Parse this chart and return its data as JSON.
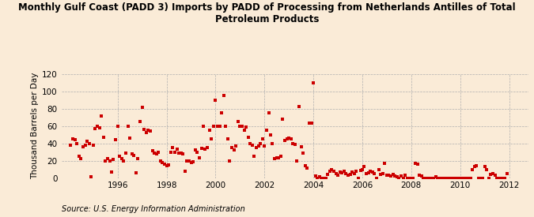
{
  "title": "Monthly Gulf Coast (PADD 3) Imports by PADD of Processing from Netherlands Antilles of Total\nPetroleum Products",
  "ylabel": "Thousand Barrels per Day",
  "source": "Source: U.S. Energy Information Administration",
  "background_color": "#faebd7",
  "marker_color": "#cc0000",
  "ylim": [
    0,
    120
  ],
  "yticks": [
    0,
    20,
    40,
    60,
    80,
    100,
    120
  ],
  "xlim_start": 1993.7,
  "xlim_end": 2012.8,
  "xtick_years": [
    1996,
    1998,
    2000,
    2002,
    2004,
    2006,
    2008,
    2010,
    2012
  ],
  "data": [
    [
      1994.08,
      38
    ],
    [
      1994.17,
      45
    ],
    [
      1994.25,
      44
    ],
    [
      1994.33,
      40
    ],
    [
      1994.42,
      25
    ],
    [
      1994.5,
      22
    ],
    [
      1994.58,
      36
    ],
    [
      1994.67,
      38
    ],
    [
      1994.75,
      42
    ],
    [
      1994.83,
      40
    ],
    [
      1994.92,
      1
    ],
    [
      1995.0,
      38
    ],
    [
      1995.08,
      57
    ],
    [
      1995.17,
      60
    ],
    [
      1995.25,
      58
    ],
    [
      1995.33,
      71
    ],
    [
      1995.42,
      47
    ],
    [
      1995.5,
      20
    ],
    [
      1995.58,
      22
    ],
    [
      1995.67,
      20
    ],
    [
      1995.75,
      7
    ],
    [
      1995.83,
      21
    ],
    [
      1995.92,
      44
    ],
    [
      1996.0,
      60
    ],
    [
      1996.08,
      25
    ],
    [
      1996.17,
      22
    ],
    [
      1996.25,
      20
    ],
    [
      1996.33,
      29
    ],
    [
      1996.42,
      60
    ],
    [
      1996.5,
      46
    ],
    [
      1996.58,
      28
    ],
    [
      1996.67,
      26
    ],
    [
      1996.75,
      6
    ],
    [
      1996.83,
      22
    ],
    [
      1996.92,
      65
    ],
    [
      1997.0,
      81
    ],
    [
      1997.08,
      56
    ],
    [
      1997.17,
      52
    ],
    [
      1997.25,
      55
    ],
    [
      1997.33,
      54
    ],
    [
      1997.42,
      31
    ],
    [
      1997.5,
      29
    ],
    [
      1997.58,
      28
    ],
    [
      1997.67,
      30
    ],
    [
      1997.75,
      20
    ],
    [
      1997.83,
      18
    ],
    [
      1997.92,
      16
    ],
    [
      1998.0,
      14
    ],
    [
      1998.08,
      15
    ],
    [
      1998.17,
      30
    ],
    [
      1998.25,
      35
    ],
    [
      1998.33,
      30
    ],
    [
      1998.42,
      33
    ],
    [
      1998.5,
      29
    ],
    [
      1998.58,
      29
    ],
    [
      1998.67,
      28
    ],
    [
      1998.75,
      8
    ],
    [
      1998.83,
      20
    ],
    [
      1998.92,
      20
    ],
    [
      1999.0,
      18
    ],
    [
      1999.08,
      19
    ],
    [
      1999.17,
      32
    ],
    [
      1999.25,
      30
    ],
    [
      1999.33,
      23
    ],
    [
      1999.42,
      34
    ],
    [
      1999.5,
      60
    ],
    [
      1999.58,
      33
    ],
    [
      1999.67,
      35
    ],
    [
      1999.75,
      55
    ],
    [
      1999.83,
      45
    ],
    [
      1999.92,
      60
    ],
    [
      2000.0,
      90
    ],
    [
      2000.08,
      60
    ],
    [
      2000.17,
      60
    ],
    [
      2000.25,
      75
    ],
    [
      2000.33,
      95
    ],
    [
      2000.42,
      60
    ],
    [
      2000.5,
      45
    ],
    [
      2000.58,
      20
    ],
    [
      2000.67,
      35
    ],
    [
      2000.75,
      32
    ],
    [
      2000.83,
      37
    ],
    [
      2000.92,
      65
    ],
    [
      2001.0,
      60
    ],
    [
      2001.08,
      60
    ],
    [
      2001.17,
      55
    ],
    [
      2001.25,
      59
    ],
    [
      2001.33,
      47
    ],
    [
      2001.42,
      40
    ],
    [
      2001.5,
      38
    ],
    [
      2001.58,
      25
    ],
    [
      2001.67,
      35
    ],
    [
      2001.75,
      37
    ],
    [
      2001.83,
      40
    ],
    [
      2001.92,
      45
    ],
    [
      2002.0,
      37
    ],
    [
      2002.08,
      55
    ],
    [
      2002.17,
      75
    ],
    [
      2002.25,
      50
    ],
    [
      2002.33,
      40
    ],
    [
      2002.42,
      22
    ],
    [
      2002.5,
      23
    ],
    [
      2002.58,
      23
    ],
    [
      2002.67,
      25
    ],
    [
      2002.75,
      68
    ],
    [
      2002.83,
      43
    ],
    [
      2002.92,
      45
    ],
    [
      2003.0,
      46
    ],
    [
      2003.08,
      45
    ],
    [
      2003.17,
      40
    ],
    [
      2003.25,
      39
    ],
    [
      2003.33,
      20
    ],
    [
      2003.42,
      82
    ],
    [
      2003.5,
      36
    ],
    [
      2003.58,
      29
    ],
    [
      2003.67,
      14
    ],
    [
      2003.75,
      11
    ],
    [
      2003.83,
      63
    ],
    [
      2003.92,
      63
    ],
    [
      2004.0,
      110
    ],
    [
      2004.08,
      2
    ],
    [
      2004.17,
      0
    ],
    [
      2004.25,
      1
    ],
    [
      2004.33,
      0
    ],
    [
      2004.42,
      0
    ],
    [
      2004.5,
      0
    ],
    [
      2004.58,
      4
    ],
    [
      2004.67,
      8
    ],
    [
      2004.75,
      10
    ],
    [
      2004.83,
      8
    ],
    [
      2004.92,
      5
    ],
    [
      2005.0,
      3
    ],
    [
      2005.08,
      7
    ],
    [
      2005.17,
      6
    ],
    [
      2005.25,
      8
    ],
    [
      2005.33,
      5
    ],
    [
      2005.42,
      3
    ],
    [
      2005.5,
      4
    ],
    [
      2005.58,
      7
    ],
    [
      2005.67,
      5
    ],
    [
      2005.75,
      8
    ],
    [
      2005.83,
      0
    ],
    [
      2005.92,
      9
    ],
    [
      2006.0,
      10
    ],
    [
      2006.08,
      13
    ],
    [
      2006.17,
      5
    ],
    [
      2006.25,
      6
    ],
    [
      2006.33,
      8
    ],
    [
      2006.42,
      7
    ],
    [
      2006.5,
      5
    ],
    [
      2006.58,
      0
    ],
    [
      2006.67,
      10
    ],
    [
      2006.75,
      4
    ],
    [
      2006.83,
      5
    ],
    [
      2006.92,
      17
    ],
    [
      2007.0,
      3
    ],
    [
      2007.08,
      3
    ],
    [
      2007.17,
      2
    ],
    [
      2007.25,
      4
    ],
    [
      2007.33,
      2
    ],
    [
      2007.42,
      1
    ],
    [
      2007.5,
      0
    ],
    [
      2007.58,
      2
    ],
    [
      2007.67,
      0
    ],
    [
      2007.75,
      3
    ],
    [
      2007.83,
      0
    ],
    [
      2007.92,
      0
    ],
    [
      2008.0,
      0
    ],
    [
      2008.08,
      0
    ],
    [
      2008.17,
      17
    ],
    [
      2008.25,
      16
    ],
    [
      2008.33,
      3
    ],
    [
      2008.42,
      2
    ],
    [
      2008.5,
      0
    ],
    [
      2008.58,
      0
    ],
    [
      2008.67,
      0
    ],
    [
      2008.75,
      0
    ],
    [
      2008.83,
      0
    ],
    [
      2008.92,
      0
    ],
    [
      2009.0,
      1
    ],
    [
      2009.08,
      0
    ],
    [
      2009.17,
      0
    ],
    [
      2009.25,
      0
    ],
    [
      2009.33,
      0
    ],
    [
      2009.42,
      0
    ],
    [
      2009.5,
      0
    ],
    [
      2009.58,
      0
    ],
    [
      2009.67,
      0
    ],
    [
      2009.75,
      0
    ],
    [
      2009.83,
      0
    ],
    [
      2009.92,
      0
    ],
    [
      2010.0,
      0
    ],
    [
      2010.08,
      0
    ],
    [
      2010.17,
      0
    ],
    [
      2010.25,
      0
    ],
    [
      2010.33,
      0
    ],
    [
      2010.42,
      0
    ],
    [
      2010.5,
      10
    ],
    [
      2010.58,
      13
    ],
    [
      2010.67,
      14
    ],
    [
      2010.75,
      0
    ],
    [
      2010.83,
      0
    ],
    [
      2010.92,
      0
    ],
    [
      2011.0,
      13
    ],
    [
      2011.08,
      10
    ],
    [
      2011.17,
      0
    ],
    [
      2011.25,
      4
    ],
    [
      2011.33,
      5
    ],
    [
      2011.42,
      3
    ],
    [
      2011.5,
      0
    ],
    [
      2011.58,
      0
    ],
    [
      2011.67,
      0
    ],
    [
      2011.75,
      0
    ],
    [
      2011.83,
      0
    ],
    [
      2011.92,
      5
    ]
  ]
}
